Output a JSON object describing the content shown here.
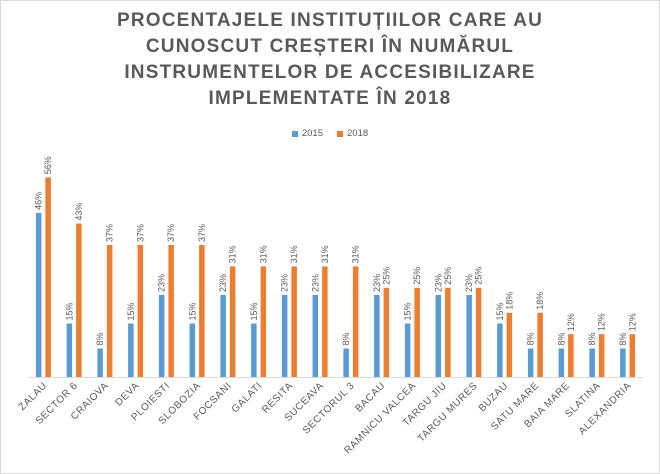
{
  "chart_data": {
    "type": "bar",
    "title_lines": [
      "PROCENTAJELE INSTITUȚIILOR CARE AU",
      "CUNOSCUT CREȘTERI ÎN NUMĂRUL",
      "INSTRUMENTELOR DE ACCESIBILIZARE",
      "IMPLEMENTATE ÎN 2018"
    ],
    "categories": [
      "ZALAU",
      "SECTOR 6",
      "CRAIOVA",
      "DEVA",
      "PLOIESTI",
      "SLOBOZIA",
      "FOCSANI",
      "GALATI",
      "RESITA",
      "SUCEAVA",
      "SECTORUL 3",
      "BACAU",
      "RAMNICU VALCEA",
      "TARGU JIU",
      "TARGU MURES",
      "BUZAU",
      "SATU MARE",
      "BAIA MARE",
      "SLATINA",
      "ALEXANDRIA"
    ],
    "series": [
      {
        "name": "2015",
        "color": "#5b9bd5",
        "values": [
          46,
          15,
          8,
          15,
          23,
          15,
          23,
          15,
          23,
          23,
          8,
          23,
          15,
          23,
          23,
          15,
          8,
          8,
          8,
          8
        ]
      },
      {
        "name": "2018",
        "color": "#ed7d31",
        "values": [
          56,
          43,
          37,
          37,
          37,
          37,
          31,
          31,
          31,
          31,
          31,
          25,
          25,
          25,
          25,
          18,
          18,
          12,
          12,
          12
        ]
      }
    ],
    "value_suffix": "%",
    "xlabel": "",
    "ylabel": "",
    "ylim": [
      0,
      60
    ],
    "grid": false,
    "legend_position": "top"
  }
}
